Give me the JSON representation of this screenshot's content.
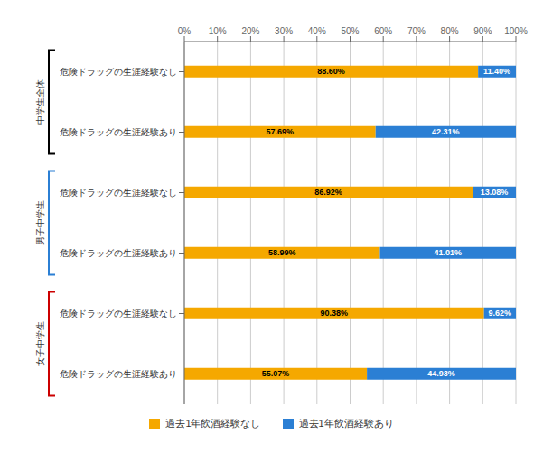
{
  "chart_data": {
    "type": "bar",
    "orientation": "horizontal",
    "stacked": true,
    "data_labels": true,
    "grid": true,
    "categories": [
      "危険ドラッグの生涯経験なし",
      "危険ドラッグの生涯経験あり",
      "危険ドラッグの生涯経験なし",
      "危険ドラッグの生涯経験あり",
      "危険ドラッグの生涯経験なし",
      "危険ドラッグの生涯経験あり"
    ],
    "series": [
      {
        "name": "過去1年飲酒経験なし",
        "color": "#F5A800",
        "values": [
          88.6,
          57.69,
          86.92,
          58.99,
          90.38,
          55.07
        ],
        "value_labels": [
          "88.60%",
          "57.69%",
          "86.92%",
          "58.99%",
          "90.38%",
          "55.07%"
        ]
      },
      {
        "name": "過去1年飲酒経験あり",
        "color": "#2B7FD4",
        "values": [
          11.4,
          42.31,
          13.08,
          41.01,
          9.62,
          44.93
        ],
        "value_labels": [
          "11.40%",
          "42.31%",
          "13.08%",
          "41.01%",
          "9.62%",
          "44.93%"
        ]
      }
    ],
    "groups": [
      {
        "name": "中学生全体",
        "color": "#000000",
        "count": 2
      },
      {
        "name": "男子中学生",
        "color": "#2B7FD4",
        "count": 2
      },
      {
        "name": "女子中学生",
        "color": "#CC0000",
        "count": 2
      }
    ],
    "xlim": [
      0,
      100
    ],
    "xticks": [
      {
        "value": 0,
        "label": "0%"
      },
      {
        "value": 10,
        "label": "10%"
      },
      {
        "value": 20,
        "label": "20%"
      },
      {
        "value": 30,
        "label": "30%"
      },
      {
        "value": 40,
        "label": "40%"
      },
      {
        "value": 50,
        "label": "50%"
      },
      {
        "value": 60,
        "label": "60%"
      },
      {
        "value": 70,
        "label": "70%"
      },
      {
        "value": 80,
        "label": "80%"
      },
      {
        "value": 90,
        "label": "90%"
      },
      {
        "value": 100,
        "label": "100%"
      }
    ]
  }
}
